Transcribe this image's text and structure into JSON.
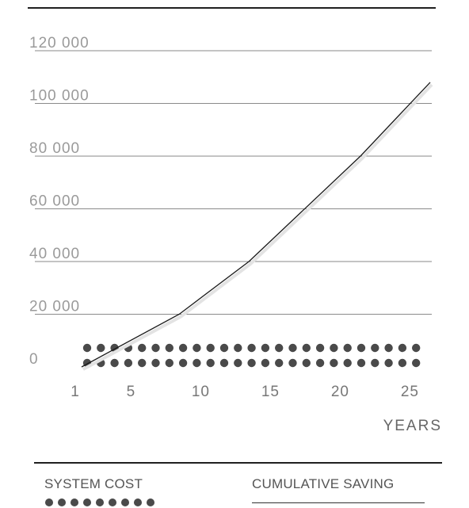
{
  "chart_data": {
    "type": "line",
    "title": "",
    "xlabel": "YEARS",
    "ylabel": "",
    "x_ticks": [
      "1",
      "5",
      "10",
      "15",
      "20",
      "25"
    ],
    "y_ticks": [
      "0",
      "20 000",
      "40 000",
      "60 000",
      "80 000",
      "100 000",
      "120 000"
    ],
    "ylim": [
      0,
      120000
    ],
    "xlim": [
      1,
      26
    ],
    "grid": true,
    "legend": "bottom",
    "series": [
      {
        "name": "CUMULATIVE SAVING",
        "style": "solid-line",
        "color": "#1a1a1a",
        "x": [
          1,
          8,
          13,
          21,
          26
        ],
        "y": [
          0,
          20000,
          40000,
          80000,
          108000
        ]
      },
      {
        "name": "SYSTEM COST",
        "style": "dotted",
        "color": "#4a4a4a",
        "x": [
          1,
          26
        ],
        "y": [
          6000,
          6000
        ]
      }
    ]
  },
  "legend": {
    "system_cost_label": "SYSTEM COST",
    "cumulative_saving_label": "CUMULATIVE SAVING"
  }
}
